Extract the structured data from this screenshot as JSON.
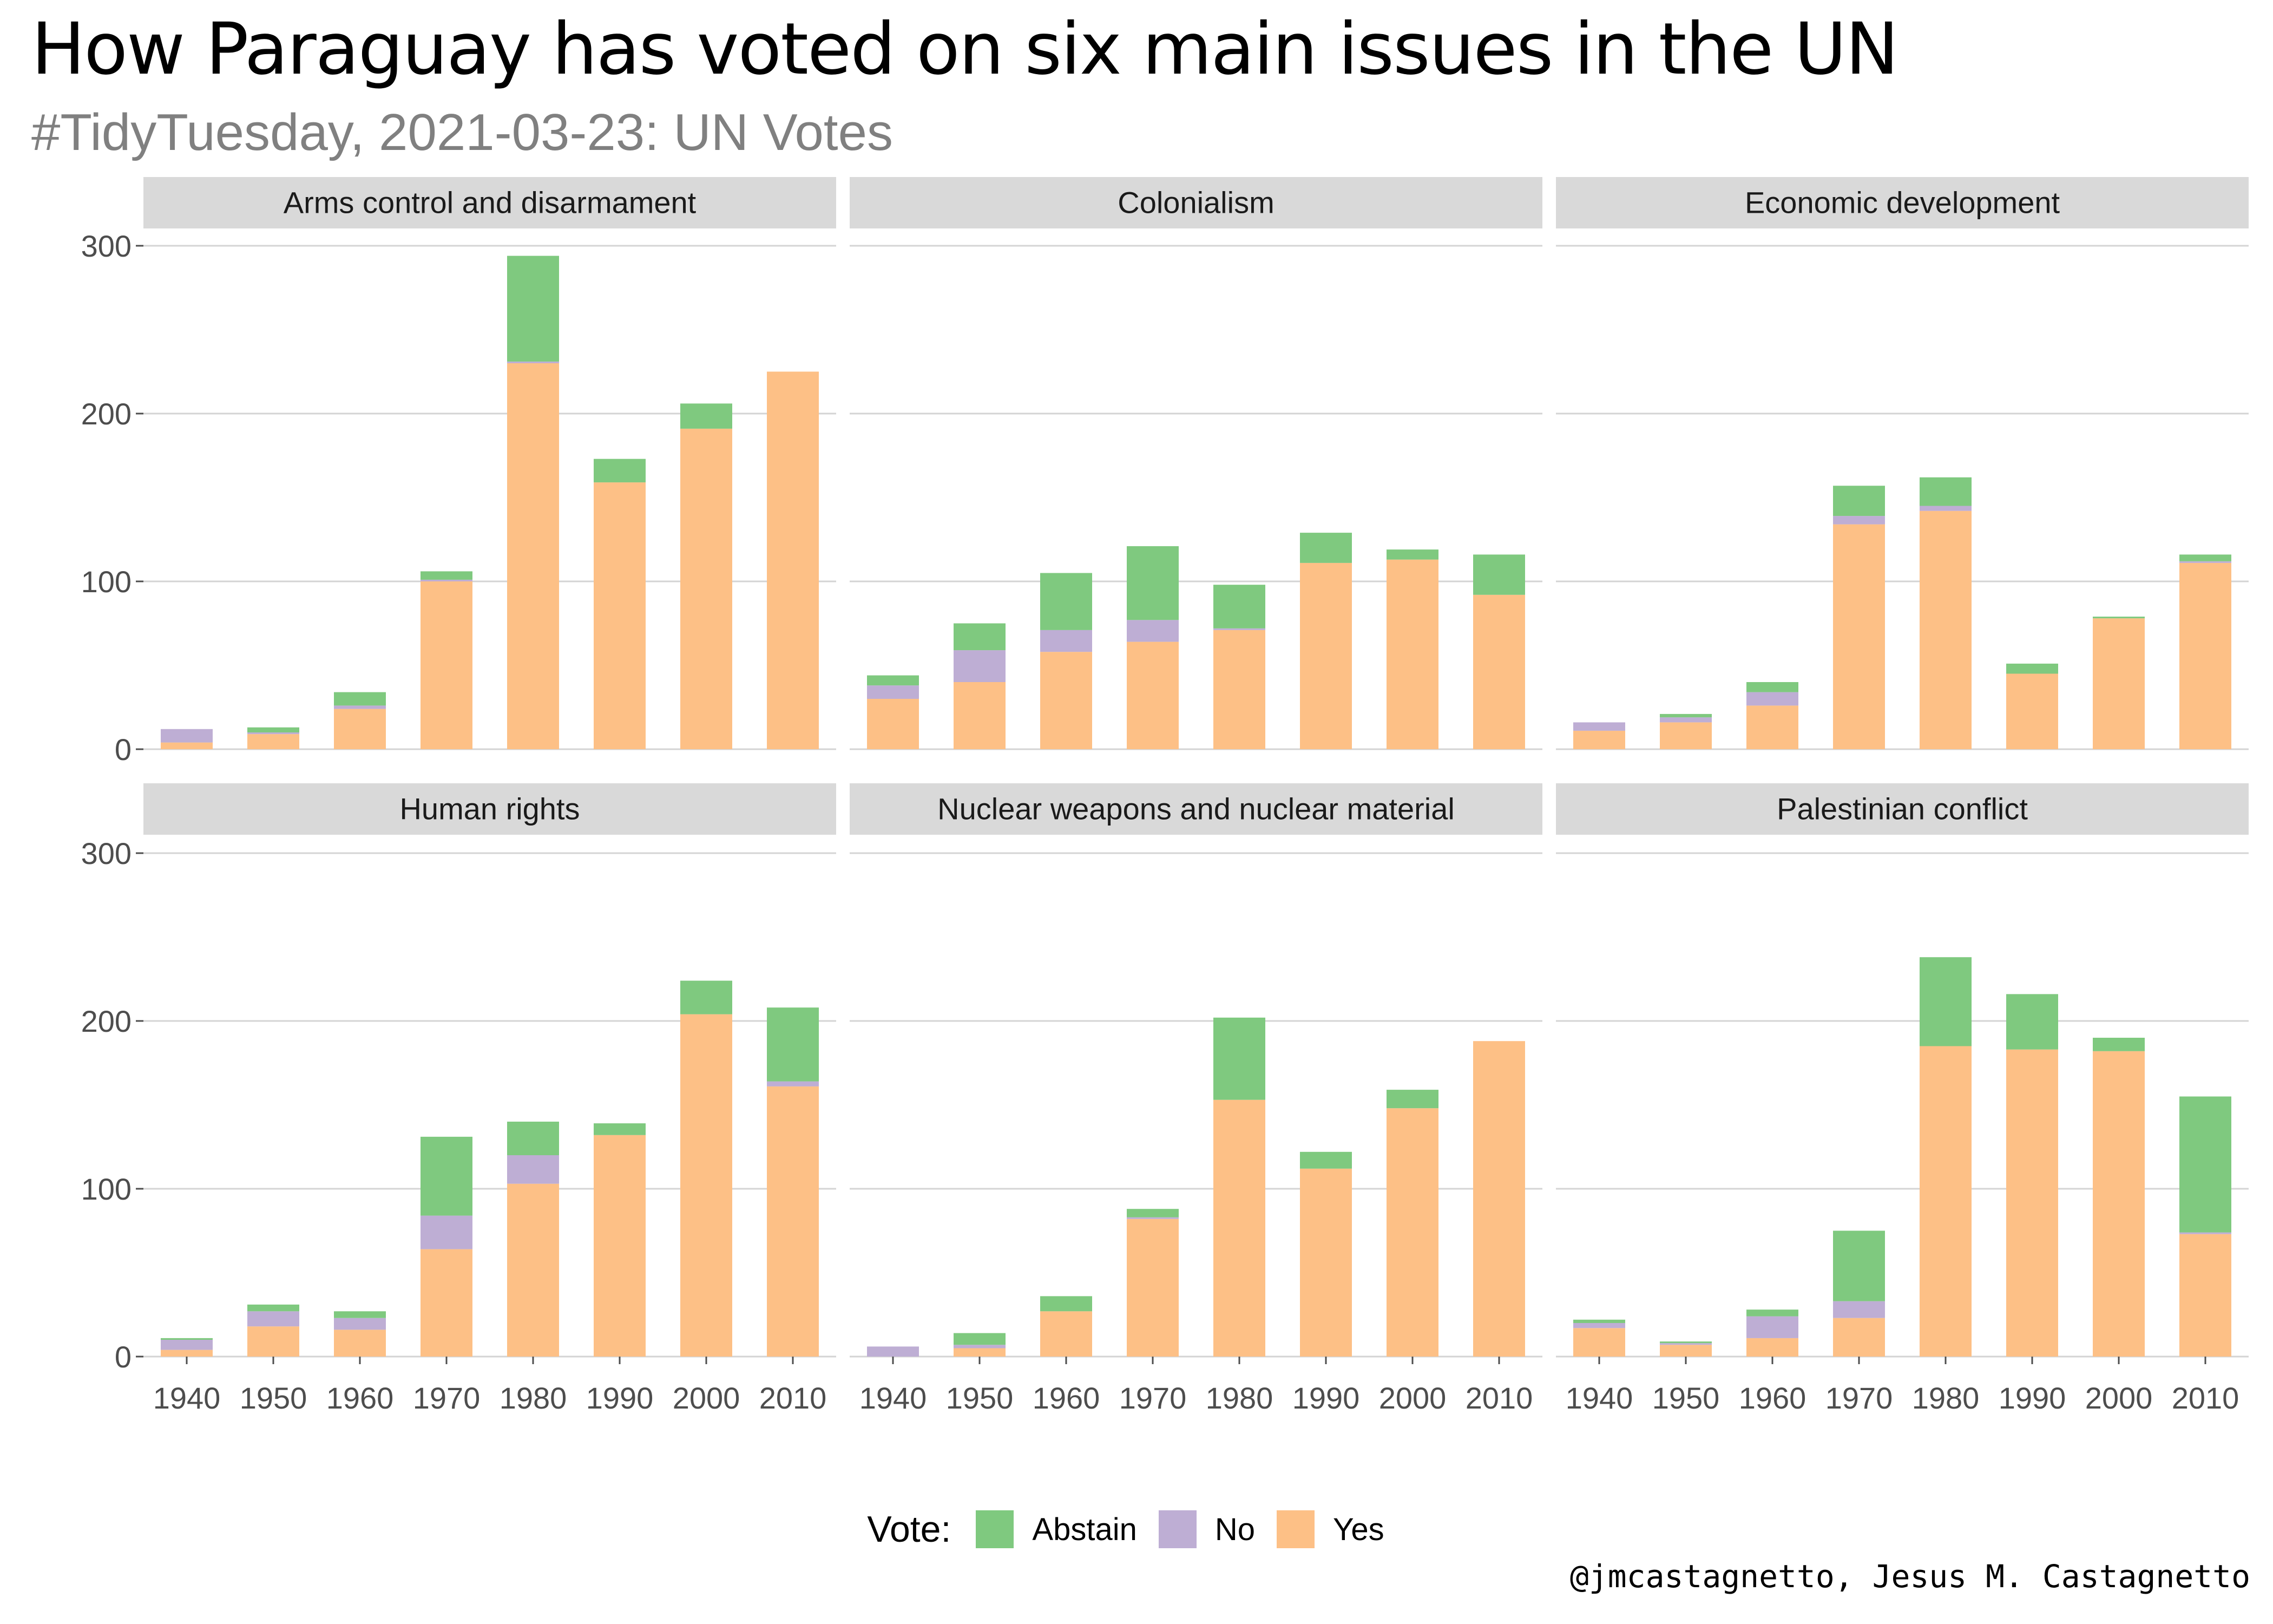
{
  "title": "How Paraguay has voted on six main issues in the UN",
  "subtitle": "#TidyTuesday, 2021-03-23: UN Votes",
  "caption": "@jmcastagnetto, Jesus M. Castagnetto",
  "legend": {
    "title": "Vote:",
    "items": [
      {
        "label": "Abstain",
        "color": "#7fc97f"
      },
      {
        "label": "No",
        "color": "#beaed4"
      },
      {
        "label": "Yes",
        "color": "#fdc086"
      }
    ]
  },
  "chart_data": {
    "type": "bar",
    "stacked": true,
    "facets_layout": "2 rows x 3 columns, shared y axis",
    "categories": [
      "1940",
      "1950",
      "1960",
      "1970",
      "1980",
      "1990",
      "2000",
      "2010"
    ],
    "y_ticks": [
      "0",
      "100",
      "200",
      "300"
    ],
    "ylim": [
      0,
      300
    ],
    "grid": true,
    "legend_position": "bottom",
    "series_order": [
      "Yes",
      "No",
      "Abstain"
    ],
    "series_colors": {
      "Yes": "#fdc086",
      "No": "#beaed4",
      "Abstain": "#7fc97f"
    },
    "facets": [
      {
        "name": "Arms control and disarmament",
        "series": [
          {
            "name": "Yes",
            "values": [
              4,
              9,
              24,
              100,
              230,
              159,
              191,
              225
            ]
          },
          {
            "name": "No",
            "values": [
              8,
              1,
              2,
              1,
              1,
              0,
              0,
              0
            ]
          },
          {
            "name": "Abstain",
            "values": [
              0,
              3,
              8,
              5,
              63,
              14,
              15,
              0
            ]
          }
        ]
      },
      {
        "name": "Colonialism",
        "series": [
          {
            "name": "Yes",
            "values": [
              30,
              40,
              58,
              64,
              71,
              111,
              113,
              92
            ]
          },
          {
            "name": "No",
            "values": [
              8,
              19,
              13,
              13,
              1,
              0,
              0,
              0
            ]
          },
          {
            "name": "Abstain",
            "values": [
              6,
              16,
              34,
              44,
              26,
              18,
              6,
              24
            ]
          }
        ]
      },
      {
        "name": "Economic development",
        "series": [
          {
            "name": "Yes",
            "values": [
              11,
              16,
              26,
              134,
              142,
              45,
              78,
              111
            ]
          },
          {
            "name": "No",
            "values": [
              5,
              3,
              8,
              5,
              3,
              0,
              0,
              1
            ]
          },
          {
            "name": "Abstain",
            "values": [
              0,
              2,
              6,
              18,
              17,
              6,
              1,
              4
            ]
          }
        ]
      },
      {
        "name": "Human rights",
        "series": [
          {
            "name": "Yes",
            "values": [
              4,
              18,
              16,
              64,
              103,
              132,
              204,
              161
            ]
          },
          {
            "name": "No",
            "values": [
              6,
              9,
              7,
              20,
              17,
              0,
              0,
              3
            ]
          },
          {
            "name": "Abstain",
            "values": [
              1,
              4,
              4,
              47,
              20,
              7,
              20,
              44
            ]
          }
        ]
      },
      {
        "name": "Nuclear weapons and nuclear material",
        "series": [
          {
            "name": "Yes",
            "values": [
              0,
              5,
              27,
              82,
              153,
              112,
              148,
              188
            ]
          },
          {
            "name": "No",
            "values": [
              6,
              2,
              0,
              1,
              0,
              0,
              0,
              0
            ]
          },
          {
            "name": "Abstain",
            "values": [
              0,
              7,
              9,
              5,
              49,
              10,
              11,
              0
            ]
          }
        ]
      },
      {
        "name": "Palestinian conflict",
        "series": [
          {
            "name": "Yes",
            "values": [
              17,
              7,
              11,
              23,
              185,
              183,
              182,
              73
            ]
          },
          {
            "name": "No",
            "values": [
              3,
              1,
              13,
              10,
              0,
              0,
              0,
              1
            ]
          },
          {
            "name": "Abstain",
            "values": [
              2,
              1,
              4,
              42,
              53,
              33,
              8,
              81
            ]
          }
        ]
      }
    ]
  }
}
